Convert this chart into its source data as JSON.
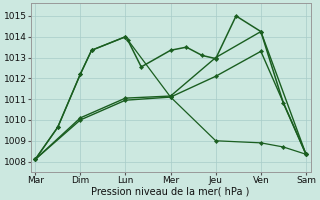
{
  "background_color": "#cce8e0",
  "grid_color": "#a8ccc8",
  "line_color": "#1a5e20",
  "xlabel": "Pression niveau de la mer( hPa )",
  "days": [
    "Mar",
    "Dim",
    "Lun",
    "Mer",
    "Jeu",
    "Ven",
    "Sam"
  ],
  "day_x": [
    0,
    1,
    2,
    3,
    4,
    5,
    6
  ],
  "ylim": [
    1007.5,
    1015.6
  ],
  "yticks": [
    1008,
    1009,
    1010,
    1011,
    1012,
    1013,
    1014,
    1015
  ],
  "lines": [
    {
      "x": [
        0,
        0.5,
        1.0,
        1.25,
        2.0,
        2.05,
        2.35,
        3.0,
        3.35,
        3.7,
        4.0,
        4.45,
        5.0,
        5.5,
        6.0
      ],
      "y": [
        1008.1,
        1009.65,
        1012.2,
        1013.35,
        1014.0,
        1013.85,
        1012.55,
        1013.35,
        1013.5,
        1013.1,
        1012.95,
        1015.0,
        1014.25,
        1010.8,
        1008.35
      ],
      "linestyle": "-",
      "linewidth": 1.1,
      "markersize": 2.2
    },
    {
      "x": [
        0,
        1.0,
        2.0,
        3.0,
        4.0,
        5.0,
        6.0
      ],
      "y": [
        1008.1,
        1010.1,
        1011.05,
        1011.15,
        1013.0,
        1014.25,
        1008.35
      ],
      "linestyle": "-",
      "linewidth": 1.0,
      "markersize": 2.2
    },
    {
      "x": [
        0,
        1.0,
        2.0,
        3.0,
        4.0,
        5.0,
        6.0
      ],
      "y": [
        1008.1,
        1010.0,
        1010.95,
        1011.1,
        1012.1,
        1013.3,
        1008.35
      ],
      "linestyle": "-",
      "linewidth": 1.0,
      "markersize": 2.2
    },
    {
      "x": [
        0,
        0.5,
        1.0,
        1.25,
        2.0,
        3.0,
        4.0,
        5.0,
        5.5,
        6.0
      ],
      "y": [
        1008.1,
        1009.65,
        1012.2,
        1013.35,
        1014.0,
        1011.1,
        1009.0,
        1008.9,
        1008.7,
        1008.35
      ],
      "linestyle": "-",
      "linewidth": 0.9,
      "markersize": 2.2
    }
  ]
}
